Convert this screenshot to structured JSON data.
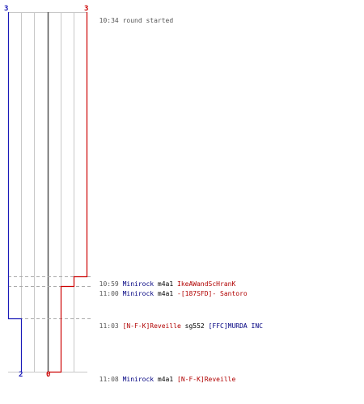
{
  "colors": {
    "team_blue": "#1a1ab8",
    "team_red": "#cc0000",
    "grid": "#c8c8c8",
    "center": "#555555",
    "dashed": "#aaaaaa",
    "timestamp": "#555555"
  },
  "scores": {
    "top_left": "3",
    "top_right": "3",
    "bottom_blue": "2",
    "bottom_red": "0"
  },
  "events": [
    {
      "time": "10:34",
      "text": "round started"
    },
    {
      "time": "10:59",
      "killer": "Minirock",
      "weapon": "m4a1",
      "victim": "IkeAWandScHranK",
      "killer_team": "blue",
      "victim_team": "red"
    },
    {
      "time": "11:00",
      "killer": "Minirock",
      "weapon": "m4a1",
      "victim": "-[187SFD]- Santoro",
      "killer_team": "blue",
      "victim_team": "red"
    },
    {
      "time": "11:03",
      "killer": "[N-F-K]Reveille",
      "weapon": "sg552",
      "victim": "[FFC]MURDA INC",
      "killer_team": "red",
      "victim_team": "blue"
    },
    {
      "time": "11:08",
      "killer": "Minirock",
      "weapon": "m4a1",
      "victim": "[N-F-K]Reveille",
      "killer_team": "blue",
      "victim_team": "red"
    }
  ]
}
